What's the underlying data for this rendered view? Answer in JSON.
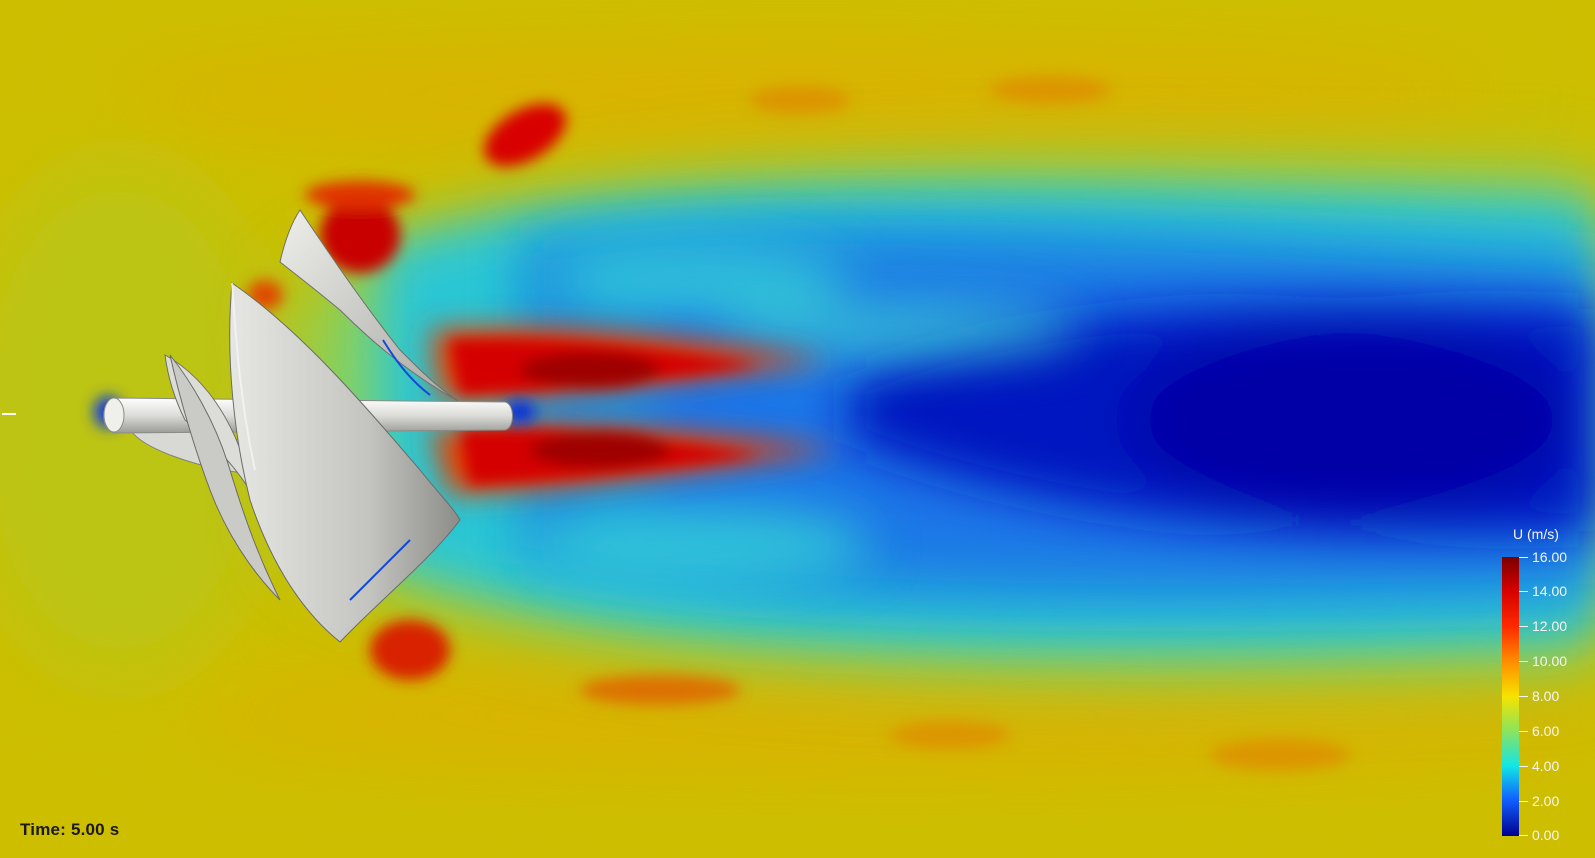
{
  "scene": {
    "time_label": "Time: 5.00 s"
  },
  "colorbar": {
    "title": "U (m/s)",
    "ticks": [
      "16.00",
      "14.00",
      "12.00",
      "10.00",
      "8.00",
      "6.00",
      "4.00",
      "2.00",
      "0.00"
    ],
    "range": [
      0,
      16
    ],
    "colormap": [
      "#00008f",
      "#1060ff",
      "#11e6e6",
      "#8fe35a",
      "#f6e300",
      "#ff8a00",
      "#ff2a00",
      "#d50000",
      "#7a0000"
    ]
  },
  "colors": {
    "background_field": "#cfc000",
    "wake_low": "#0000aa",
    "wake_mid": "#2bb8d8",
    "jet_high": "#d40000",
    "turbine_surface": "#c8c8c4"
  }
}
